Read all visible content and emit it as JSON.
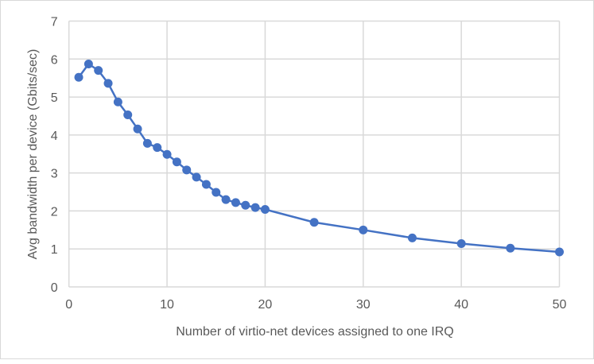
{
  "chart_data": {
    "type": "line",
    "title": "",
    "xlabel": "Number of virtio-net devices assigned to one IRQ",
    "ylabel": "Avg bandwidth per device (Gbits/sec)",
    "xlim": [
      0,
      50
    ],
    "ylim": [
      0,
      7
    ],
    "xticks": [
      "0",
      "10",
      "20",
      "30",
      "40",
      "50"
    ],
    "yticks": [
      "0",
      "1",
      "2",
      "3",
      "4",
      "5",
      "6",
      "7"
    ],
    "grid": true,
    "legend": "none",
    "series": [
      {
        "name": "Avg bandwidth per device",
        "color": "#4472c4",
        "x": [
          1,
          2,
          3,
          4,
          5,
          6,
          7,
          8,
          9,
          10,
          11,
          12,
          13,
          14,
          15,
          16,
          17,
          18,
          19,
          20,
          25,
          30,
          35,
          40,
          45,
          50
        ],
        "y": [
          5.52,
          5.87,
          5.7,
          5.36,
          4.87,
          4.53,
          4.16,
          3.78,
          3.67,
          3.49,
          3.29,
          3.08,
          2.89,
          2.7,
          2.49,
          2.3,
          2.22,
          2.15,
          2.09,
          2.04,
          1.7,
          1.5,
          1.29,
          1.14,
          1.02,
          0.92
        ]
      }
    ]
  }
}
